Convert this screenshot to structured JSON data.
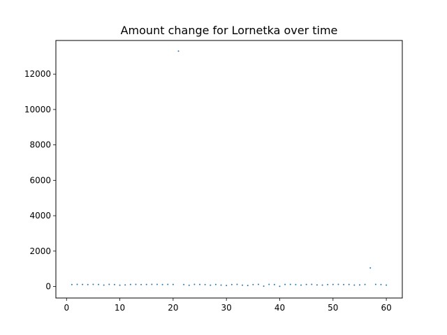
{
  "chart_data": {
    "type": "scatter",
    "title": "Amount change for Lornetka over time",
    "xlabel": "",
    "ylabel": "",
    "xlim": [
      -2,
      63
    ],
    "ylim": [
      -650,
      13900
    ],
    "xticks": [
      0,
      10,
      20,
      30,
      40,
      50,
      60
    ],
    "yticks": [
      0,
      2000,
      4000,
      6000,
      8000,
      10000,
      12000
    ],
    "grid": false,
    "marker_color": "#1f77b4",
    "series": [
      {
        "x": [
          1,
          2,
          3,
          4,
          5,
          6,
          7,
          8,
          9,
          10,
          11,
          12,
          13,
          14,
          15,
          16,
          17,
          18,
          19,
          20,
          21,
          22,
          23,
          24,
          25,
          26,
          27,
          28,
          29,
          30,
          31,
          32,
          33,
          34,
          35,
          36,
          37,
          38,
          39,
          40,
          41,
          42,
          43,
          44,
          45,
          46,
          47,
          48,
          49,
          50,
          51,
          52,
          53,
          54,
          55,
          56,
          57,
          58,
          59,
          60
        ],
        "y": [
          110,
          120,
          115,
          110,
          118,
          112,
          80,
          120,
          110,
          75,
          90,
          115,
          120,
          110,
          115,
          120,
          118,
          110,
          120,
          115,
          13300,
          110,
          70,
          120,
          115,
          110,
          75,
          115,
          80,
          60,
          110,
          120,
          75,
          60,
          110,
          120,
          20,
          120,
          110,
          10,
          115,
          120,
          110,
          80,
          115,
          120,
          90,
          80,
          110,
          115,
          120,
          110,
          115,
          80,
          90,
          115,
          1050,
          120,
          110,
          80
        ]
      }
    ]
  }
}
